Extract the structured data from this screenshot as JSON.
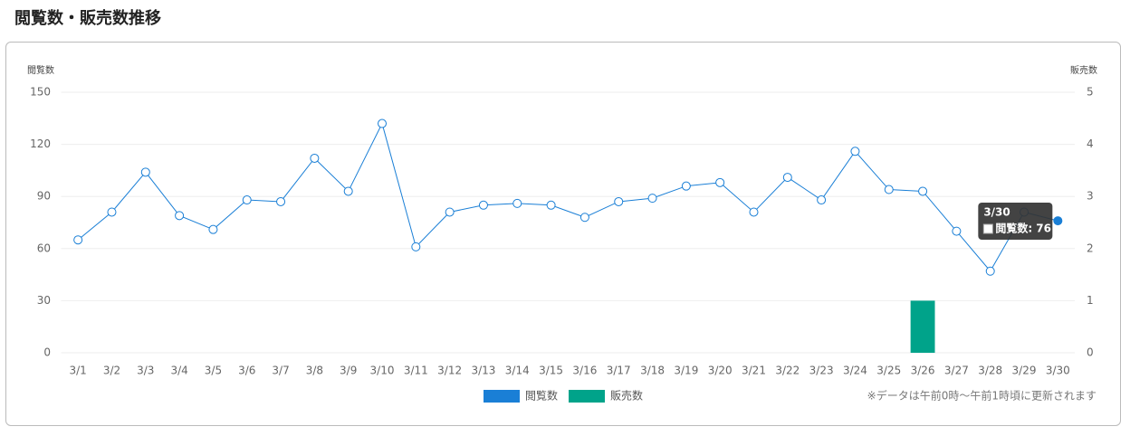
{
  "page_title": "閲覧数・販売数推移",
  "chart_data": {
    "type": "line",
    "ylabel": "閲覧数",
    "y2label": "販売数",
    "categories": [
      "3/1",
      "3/2",
      "3/3",
      "3/4",
      "3/5",
      "3/6",
      "3/7",
      "3/8",
      "3/9",
      "3/10",
      "3/11",
      "3/12",
      "3/13",
      "3/14",
      "3/15",
      "3/16",
      "3/17",
      "3/18",
      "3/19",
      "3/20",
      "3/21",
      "3/22",
      "3/23",
      "3/24",
      "3/25",
      "3/26",
      "3/27",
      "3/28",
      "3/29",
      "3/30"
    ],
    "series": [
      {
        "name": "閲覧数",
        "type": "line",
        "color": "#1a7fd6",
        "values": [
          65,
          81,
          104,
          79,
          71,
          88,
          87,
          112,
          93,
          132,
          61,
          81,
          85,
          86,
          85,
          78,
          87,
          89,
          96,
          98,
          81,
          101,
          88,
          116,
          94,
          93,
          70,
          47,
          81,
          76
        ]
      },
      {
        "name": "販売数",
        "type": "bar",
        "axis": "y2",
        "color": "#00a38a",
        "values": [
          0,
          0,
          0,
          0,
          0,
          0,
          0,
          0,
          0,
          0,
          0,
          0,
          0,
          0,
          0,
          0,
          0,
          0,
          0,
          0,
          0,
          0,
          0,
          0,
          0,
          1,
          0,
          0,
          0,
          0
        ]
      }
    ],
    "ylim": [
      0,
      150
    ],
    "yticks": [
      0,
      30,
      60,
      90,
      120,
      150
    ],
    "y2lim": [
      0,
      5
    ],
    "y2ticks": [
      0,
      1,
      2,
      3,
      4,
      5
    ],
    "grid": true,
    "tooltip_label": "閲覧数: 76",
    "note": "※データは午前0時～午前1時頃に更新されます"
  }
}
